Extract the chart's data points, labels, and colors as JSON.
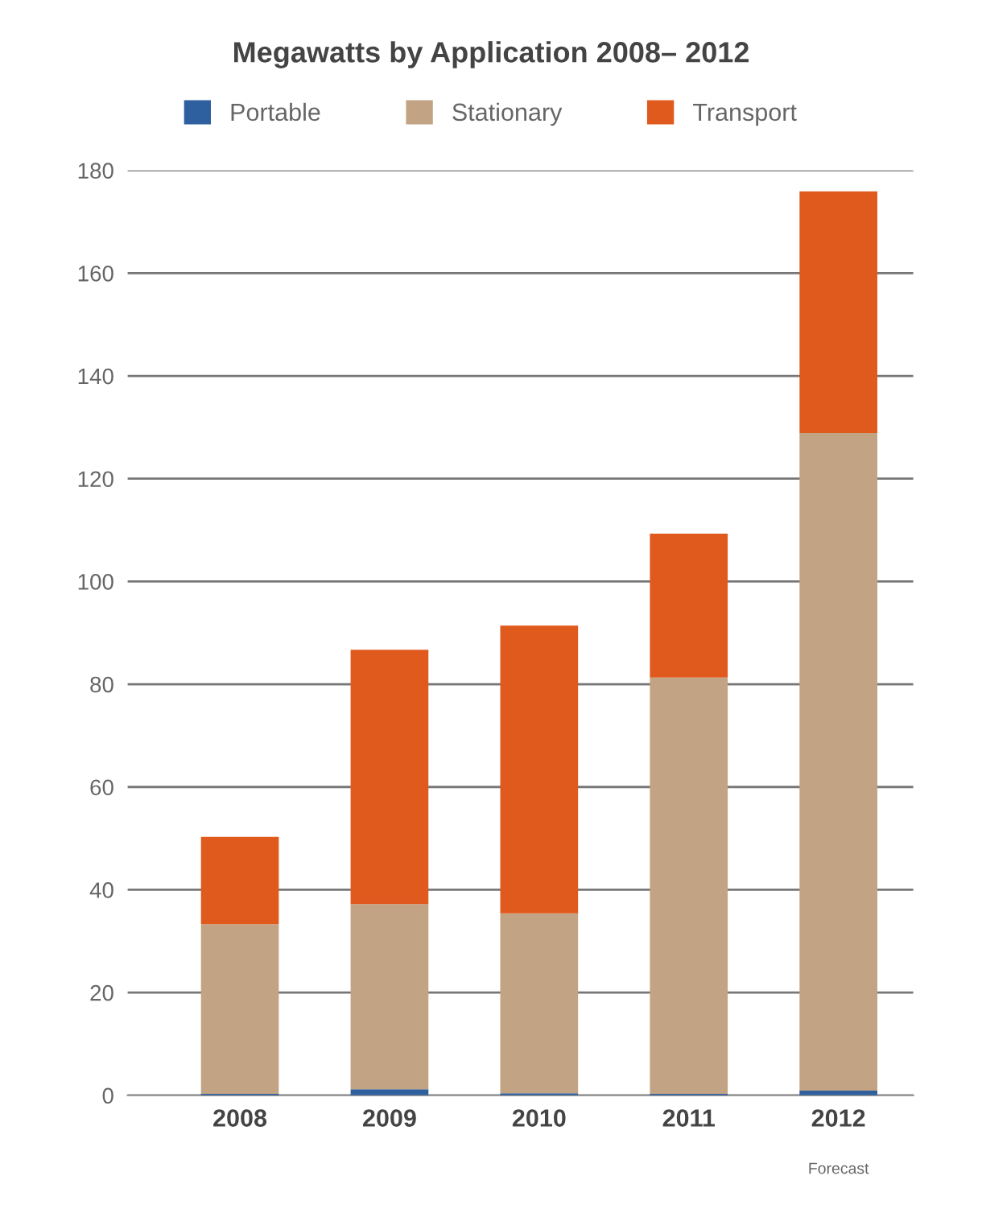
{
  "chart_data": {
    "type": "bar",
    "title": "Megawatts by Application 2008– 2012",
    "categories": [
      "2008",
      "2009",
      "2010",
      "2011",
      "2012"
    ],
    "stacked": true,
    "series": [
      {
        "name": "Portable",
        "color": "#2e5f9e",
        "values": [
          0.3,
          1.2,
          0.4,
          0.3,
          0.9
        ]
      },
      {
        "name": "Stationary",
        "color": "#c2a383",
        "values": [
          33,
          36,
          35,
          81,
          128
        ]
      },
      {
        "name": "Transport",
        "color": "#e05a1e",
        "values": [
          17,
          49.5,
          56,
          28,
          47
        ]
      }
    ],
    "annotations": [
      "Forecast"
    ],
    "ylim": [
      0,
      180
    ],
    "yticks": [
      0,
      20,
      40,
      60,
      80,
      100,
      120,
      140,
      160,
      180
    ],
    "grid": "y",
    "legend": "top"
  }
}
